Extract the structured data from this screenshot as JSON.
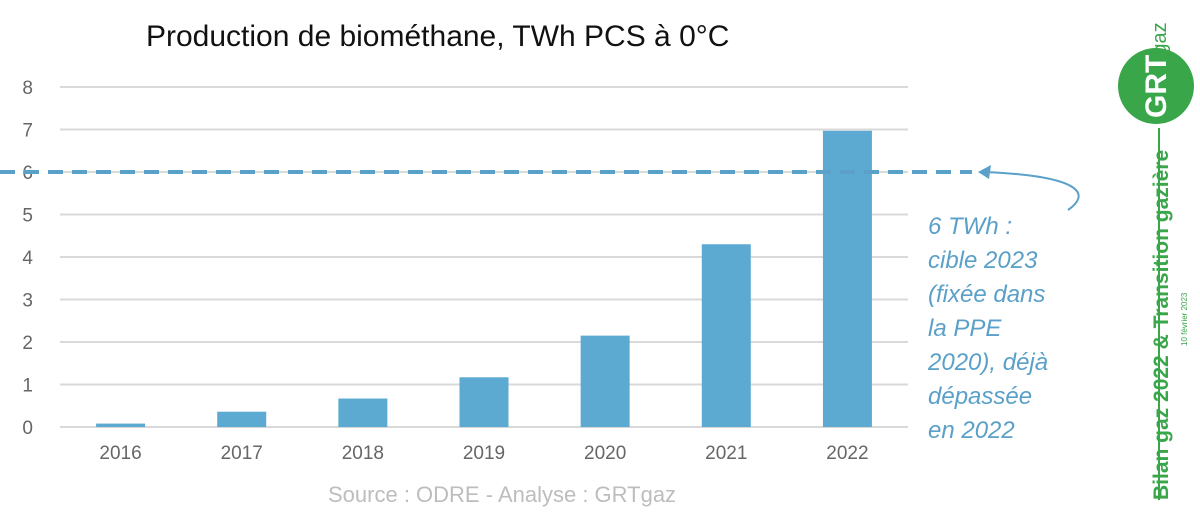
{
  "chart_data": {
    "type": "bar",
    "title": "Production de biométhane, TWh PCS à 0°C",
    "categories": [
      "2016",
      "2017",
      "2018",
      "2019",
      "2020",
      "2021",
      "2022"
    ],
    "values": [
      0.08,
      0.36,
      0.67,
      1.17,
      2.15,
      4.3,
      6.97
    ],
    "ylim": [
      0,
      8
    ],
    "yticks": [
      0,
      1,
      2,
      3,
      4,
      5,
      6,
      7,
      8
    ],
    "target_value": 6,
    "source": "Source : ODRE - Analyse : GRTgaz",
    "annotation_lines": [
      "6 TWh :",
      "cible 2023",
      "(fixée dans",
      "la PPE",
      "2020), déjà",
      "dépassée",
      "en 2022"
    ],
    "colors": {
      "bar": "#5ca9d2",
      "target": "#5aa0c8",
      "grid": "#d9d9d9",
      "tick": "#666666"
    }
  },
  "branding": {
    "logo_main": "GRT",
    "logo_small": "gaz",
    "side_title": "Bilan gaz 2022 & Transition gazière",
    "side_date": "10 février 2023",
    "brand_color": "#3aa64a"
  }
}
